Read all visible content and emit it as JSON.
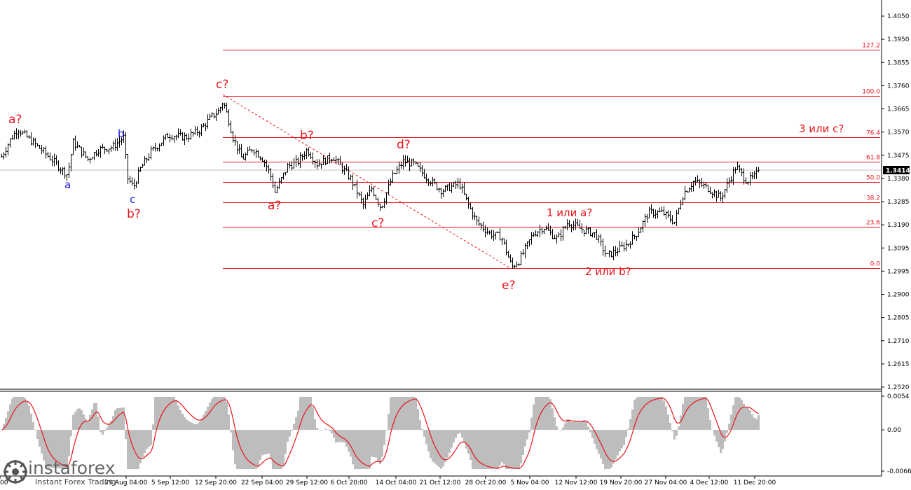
{
  "chart_data": {
    "type": "candlestick",
    "symbol_last_price": "1.3414",
    "price_axis": {
      "ylim": [
        1.252,
        1.405
      ],
      "ticks": [
        "1.4050",
        "1.3950",
        "1.3855",
        "1.3760",
        "1.3665",
        "1.3570",
        "1.3475",
        "1.3380",
        "1.3285",
        "1.3190",
        "1.3095",
        "1.2995",
        "1.2900",
        "1.2805",
        "1.2710",
        "1.2615",
        "1.2520"
      ]
    },
    "time_axis": {
      "ticks": [
        "00",
        "29 Aug 04:00",
        "5 Sep 12:00",
        "12 Sep 20:00",
        "22 Sep 04:00",
        "29 Sep 12:00",
        "6 Oct 20:00",
        "14 Oct 04:00",
        "21 Oct 12:00",
        "28 Oct 20:00",
        "5 Nov 04:00",
        "12 Nov 12:00",
        "19 Nov 20:00",
        "27 Nov 04:00",
        "4 Dec 12:00",
        "11 Dec 20:00"
      ]
    },
    "fibonacci": {
      "levels": [
        {
          "label": "127.2",
          "price": 1.391
        },
        {
          "label": "100.0",
          "price": 1.3722
        },
        {
          "label": "76.4",
          "price": 1.3551
        },
        {
          "label": "61.8",
          "price": 1.3449
        },
        {
          "label": "50.0",
          "price": 1.3366
        },
        {
          "label": "38.2",
          "price": 1.3283
        },
        {
          "label": "23.6",
          "price": 1.3181
        },
        {
          "label": "0.0",
          "price": 1.301
        }
      ]
    },
    "wave_labels": [
      {
        "text": "a?",
        "color": "#e8141b"
      },
      {
        "text": "a",
        "color": "#1a1ae6"
      },
      {
        "text": "b",
        "color": "#1a1ae6"
      },
      {
        "text": "c",
        "color": "#1a1ae6"
      },
      {
        "text": "b?",
        "color": "#e8141b"
      },
      {
        "text": "c?",
        "color": "#e8141b"
      },
      {
        "text": "a?",
        "color": "#e8141b"
      },
      {
        "text": "b?",
        "color": "#e8141b"
      },
      {
        "text": "c?",
        "color": "#e8141b"
      },
      {
        "text": "d?",
        "color": "#e8141b"
      },
      {
        "text": "e?",
        "color": "#e8141b"
      },
      {
        "text": "1 или a?",
        "color": "#e8141b"
      },
      {
        "text": "2 или b?",
        "color": "#e8141b"
      },
      {
        "text": "3 или c?",
        "color": "#e8141b"
      }
    ],
    "oscillator": {
      "ticks": [
        "0.0054",
        "0.00",
        "-0.00662"
      ],
      "ylim": [
        -0.00662,
        0.0054
      ]
    },
    "colors": {
      "fib": "#e8141b",
      "candle": "#000000",
      "histogram": "#bdbdbd",
      "signal": "#e8141b"
    }
  },
  "watermark": {
    "brand": "instaforex",
    "sub": "Instant Forex Trading"
  }
}
